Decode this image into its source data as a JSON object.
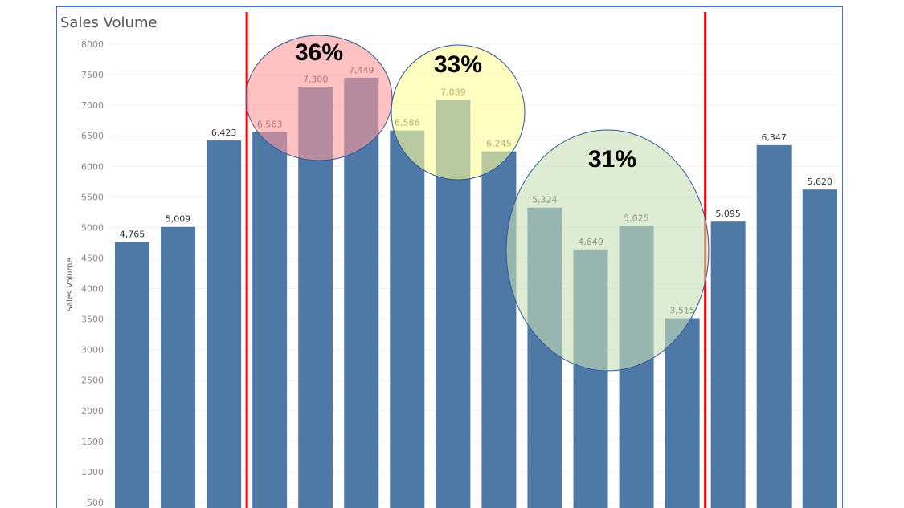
{
  "chart_data": {
    "type": "bar",
    "title": "Sales Volume",
    "ylabel": "Sales Volume",
    "xlabel": "",
    "ylim": [
      500,
      8000
    ],
    "yticks": [
      500,
      1000,
      1500,
      2000,
      2500,
      3000,
      3500,
      4000,
      4500,
      5000,
      5500,
      6000,
      6500,
      7000,
      7500,
      8000
    ],
    "values": [
      4765,
      5009,
      6423,
      6563,
      7300,
      7449,
      6586,
      7089,
      6245,
      5324,
      4640,
      5025,
      3515,
      5095,
      6347,
      5620
    ],
    "value_labels": [
      "4,765",
      "5,009",
      "6,423",
      "6,563",
      "7,300",
      "7,449",
      "6,586",
      "7,089",
      "6,245",
      "5,324",
      "4,640",
      "5,025",
      "3,515",
      "5,095",
      "6,347",
      "5,620"
    ],
    "grid": true,
    "bar_color": "#4e79a7",
    "annotations": {
      "divider_color": "#ff0000",
      "dividers_after_bar_index": [
        2,
        12
      ],
      "groups": [
        {
          "label": "36%",
          "bars": [
            3,
            4,
            5
          ],
          "color": "#ff9999"
        },
        {
          "label": "33%",
          "bars": [
            6,
            7,
            8
          ],
          "color": "#ffff99"
        },
        {
          "label": "31%",
          "bars": [
            9,
            10,
            11,
            12
          ],
          "color": "#c6e0b4"
        }
      ]
    }
  }
}
